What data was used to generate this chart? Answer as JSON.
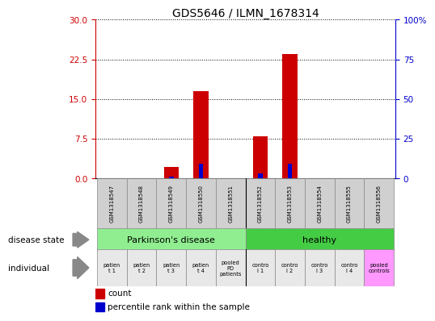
{
  "title": "GDS5646 / ILMN_1678314",
  "samples": [
    "GSM1318547",
    "GSM1318548",
    "GSM1318549",
    "GSM1318550",
    "GSM1318551",
    "GSM1318552",
    "GSM1318553",
    "GSM1318554",
    "GSM1318555",
    "GSM1318556"
  ],
  "count_values": [
    0,
    0,
    2.2,
    16.5,
    0,
    8.0,
    23.5,
    0,
    0,
    0
  ],
  "percentile_values": [
    0,
    0,
    1.0,
    9.0,
    0,
    3.0,
    9.0,
    0,
    0,
    0
  ],
  "ylim_left": [
    0,
    30
  ],
  "ylim_right": [
    0,
    100
  ],
  "yticks_left": [
    0,
    7.5,
    15,
    22.5,
    30
  ],
  "yticks_right": [
    0,
    25,
    50,
    75,
    100
  ],
  "ytick_right_labels": [
    "0",
    "25",
    "50",
    "75",
    "100%"
  ],
  "disease_state_colors": [
    "#90EE90",
    "#44CC44"
  ],
  "individual_bg_colors": [
    "#E8E8E8",
    "#E8E8E8",
    "#E8E8E8",
    "#E8E8E8",
    "#E8E8E8",
    "#E8E8E8",
    "#E8E8E8",
    "#E8E8E8",
    "#E8E8E8",
    "#FF99FF"
  ],
  "bar_color_red": "#CC0000",
  "bar_color_blue": "#0000CC",
  "left_axis_color": "#CC0000",
  "right_axis_color": "#0000CC",
  "legend_count_label": "count",
  "legend_percentile_label": "percentile rank within the sample",
  "sample_box_color": "#D0D0D0",
  "indiv_labels": [
    "patien\nt 1",
    "patien\nt 2",
    "patien\nt 3",
    "patien\nt 4",
    "pooled\nPD\npatients",
    "contro\nl 1",
    "contro\nl 2",
    "contro\nl 3",
    "contro\nl 4",
    "pooled\ncontrols"
  ]
}
